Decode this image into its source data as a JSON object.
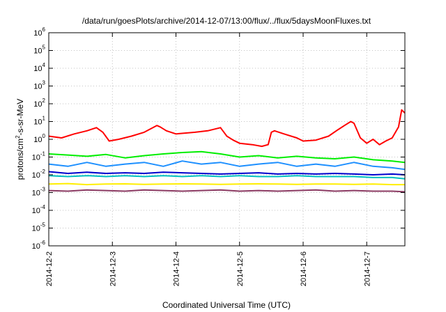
{
  "chart_data": {
    "type": "line",
    "title": "/data/run/goesPlots/archive/2014-12-07/13:00/flux/../flux/5daysMoonFluxes.txt",
    "xlabel": "Coordinated Universal Time (UTC)",
    "ylabel": {
      "prefix": "protons/cm",
      "sup": "2",
      "suffix": "-s-sr-MeV"
    },
    "yscale": "log",
    "ylim": [
      1e-06,
      1000000.0
    ],
    "xlim": [
      0,
      5.6
    ],
    "grid": true,
    "y_ticks": [
      {
        "base": "10",
        "exp": "-6",
        "value": 1e-06
      },
      {
        "base": "10",
        "exp": "-5",
        "value": 1e-05
      },
      {
        "base": "10",
        "exp": "-4",
        "value": 0.0001
      },
      {
        "base": "10",
        "exp": "-3",
        "value": 0.001
      },
      {
        "base": "10",
        "exp": "-2",
        "value": 0.01
      },
      {
        "base": "10",
        "exp": "-1",
        "value": 0.1
      },
      {
        "base": "10",
        "exp": "0",
        "value": 1
      },
      {
        "base": "10",
        "exp": "1",
        "value": 10
      },
      {
        "base": "10",
        "exp": "2",
        "value": 100
      },
      {
        "base": "10",
        "exp": "3",
        "value": 1000
      },
      {
        "base": "10",
        "exp": "4",
        "value": 10000
      },
      {
        "base": "10",
        "exp": "5",
        "value": 100000
      },
      {
        "base": "10",
        "exp": "6",
        "value": 1000000
      }
    ],
    "x_ticks": [
      {
        "label": "2014-12-2",
        "value": 0
      },
      {
        "label": "2014-12-3",
        "value": 1
      },
      {
        "label": "2014-12-4",
        "value": 2
      },
      {
        "label": "2014-12-5",
        "value": 3
      },
      {
        "label": "2014-12-6",
        "value": 4
      },
      {
        "label": "2014-12-7",
        "value": 5
      }
    ],
    "series": [
      {
        "color": "#ff0000",
        "x": [
          0,
          0.2,
          0.4,
          0.6,
          0.75,
          0.85,
          0.95,
          1.1,
          1.3,
          1.5,
          1.7,
          1.75,
          1.85,
          2.0,
          2.3,
          2.5,
          2.7,
          2.8,
          2.9,
          3.0,
          3.2,
          3.35,
          3.45,
          3.5,
          3.55,
          3.7,
          3.9,
          4.0,
          4.2,
          4.4,
          4.55,
          4.65,
          4.75,
          4.8,
          4.9,
          5.0,
          5.1,
          5.2,
          5.3,
          5.4,
          5.5,
          5.55,
          5.6
        ],
        "y": [
          1.5,
          1.2,
          2.0,
          3.0,
          4.5,
          2.5,
          0.8,
          1.0,
          1.5,
          2.5,
          6.0,
          5.0,
          3.0,
          2.0,
          2.5,
          3.0,
          4.5,
          1.5,
          0.9,
          0.6,
          0.5,
          0.4,
          0.5,
          2.5,
          3.0,
          2.0,
          1.2,
          0.8,
          0.9,
          1.5,
          3.5,
          6.0,
          10.0,
          8.0,
          1.2,
          0.6,
          1.0,
          0.5,
          0.8,
          1.2,
          5.0,
          45.0,
          30.0
        ]
      },
      {
        "color": "#00ee00",
        "x": [
          0,
          0.3,
          0.6,
          0.9,
          1.2,
          1.5,
          1.8,
          2.1,
          2.4,
          2.7,
          3.0,
          3.3,
          3.6,
          3.9,
          4.2,
          4.5,
          4.8,
          5.1,
          5.4,
          5.6
        ],
        "y": [
          0.15,
          0.13,
          0.11,
          0.14,
          0.09,
          0.12,
          0.15,
          0.18,
          0.2,
          0.15,
          0.1,
          0.12,
          0.09,
          0.11,
          0.09,
          0.08,
          0.1,
          0.07,
          0.06,
          0.05
        ]
      },
      {
        "color": "#1e90ff",
        "x": [
          0,
          0.3,
          0.6,
          0.9,
          1.2,
          1.5,
          1.8,
          2.1,
          2.4,
          2.7,
          3.0,
          3.3,
          3.6,
          3.9,
          4.2,
          4.5,
          4.8,
          5.1,
          5.4,
          5.6
        ],
        "y": [
          0.04,
          0.03,
          0.05,
          0.03,
          0.04,
          0.05,
          0.03,
          0.06,
          0.04,
          0.05,
          0.03,
          0.04,
          0.05,
          0.03,
          0.04,
          0.03,
          0.05,
          0.03,
          0.025,
          0.02
        ]
      },
      {
        "color": "#0000cd",
        "x": [
          0,
          0.3,
          0.6,
          0.9,
          1.2,
          1.5,
          1.8,
          2.1,
          2.4,
          2.7,
          3.0,
          3.3,
          3.6,
          3.9,
          4.2,
          4.5,
          4.8,
          5.1,
          5.4,
          5.6
        ],
        "y": [
          0.015,
          0.012,
          0.014,
          0.012,
          0.013,
          0.012,
          0.014,
          0.013,
          0.012,
          0.011,
          0.012,
          0.013,
          0.011,
          0.012,
          0.011,
          0.012,
          0.011,
          0.01,
          0.011,
          0.01
        ]
      },
      {
        "color": "#00c0c0",
        "x": [
          0,
          0.3,
          0.6,
          0.9,
          1.2,
          1.5,
          1.8,
          2.1,
          2.4,
          2.7,
          3.0,
          3.3,
          3.6,
          3.9,
          4.2,
          4.5,
          4.8,
          5.1,
          5.4,
          5.6
        ],
        "y": [
          0.009,
          0.008,
          0.009,
          0.008,
          0.009,
          0.008,
          0.009,
          0.008,
          0.009,
          0.008,
          0.009,
          0.008,
          0.008,
          0.009,
          0.008,
          0.008,
          0.008,
          0.007,
          0.007,
          0.006
        ]
      },
      {
        "color": "#ffee00",
        "x": [
          0,
          0.3,
          0.6,
          0.9,
          1.2,
          1.5,
          1.8,
          2.1,
          2.4,
          2.7,
          3.0,
          3.3,
          3.6,
          3.9,
          4.2,
          4.5,
          4.8,
          5.1,
          5.4,
          5.6
        ],
        "y": [
          0.003,
          0.0032,
          0.0028,
          0.003,
          0.0031,
          0.0029,
          0.003,
          0.0031,
          0.003,
          0.0029,
          0.003,
          0.0031,
          0.003,
          0.0029,
          0.003,
          0.003,
          0.0029,
          0.003,
          0.0028,
          0.0028
        ]
      },
      {
        "color": "#8b3a62",
        "x": [
          0,
          0.3,
          0.6,
          0.9,
          1.2,
          1.5,
          1.8,
          2.1,
          2.4,
          2.7,
          3.0,
          3.3,
          3.6,
          3.9,
          4.2,
          4.5,
          4.8,
          5.1,
          5.4,
          5.6
        ],
        "y": [
          0.0013,
          0.0012,
          0.0014,
          0.0013,
          0.0012,
          0.0014,
          0.0013,
          0.0012,
          0.0013,
          0.0014,
          0.0012,
          0.0013,
          0.0012,
          0.0013,
          0.0014,
          0.0012,
          0.0013,
          0.0012,
          0.0012,
          0.0011
        ]
      }
    ]
  }
}
